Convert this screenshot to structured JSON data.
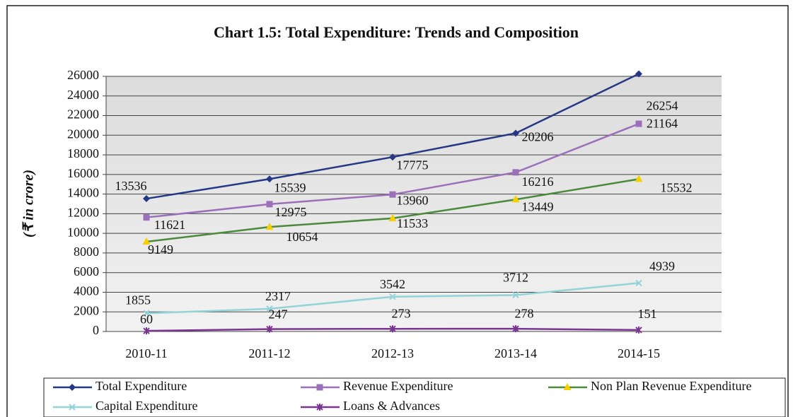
{
  "chart_data": {
    "type": "line",
    "title": "Chart 1.5: Total Expenditure: Trends and Composition",
    "y_label": "(₹ in crore)",
    "categories": [
      "2010-11",
      "2011-12",
      "2012-13",
      "2013-14",
      "2014-15"
    ],
    "series": [
      {
        "name": "Total Expenditure",
        "color": "#253785",
        "marker": "diamond",
        "values": [
          13536,
          15539,
          17775,
          20206,
          26254
        ]
      },
      {
        "name": "Revenue Expenditure",
        "color": "#9b6fba",
        "marker": "square",
        "values": [
          11621,
          12975,
          13960,
          16216,
          21164
        ]
      },
      {
        "name": "Non Plan Revenue Expenditure",
        "color": "#4a8a3a",
        "marker": "triangle",
        "marker_color": "#f5d000",
        "values": [
          9149,
          10654,
          11533,
          13449,
          15532
        ]
      },
      {
        "name": "Capital Expenditure",
        "color": "#93d4d8",
        "marker": "x",
        "values": [
          1855,
          2317,
          3542,
          3712,
          4939
        ]
      },
      {
        "name": "Loans & Advances",
        "color": "#7a3590",
        "marker": "star",
        "values": [
          60,
          247,
          273,
          278,
          151
        ]
      }
    ],
    "ylim": [
      0,
      26000
    ],
    "yticks": [
      0,
      2000,
      4000,
      6000,
      8000,
      10000,
      12000,
      14000,
      16000,
      18000,
      20000,
      22000,
      24000,
      26000
    ],
    "grid": true,
    "legend": "bottom"
  }
}
